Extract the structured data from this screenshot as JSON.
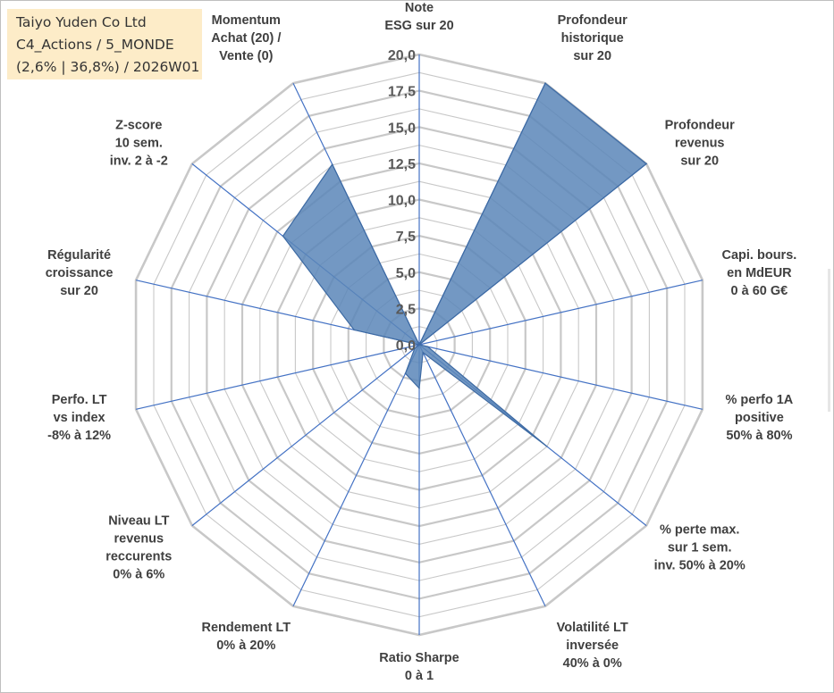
{
  "info": {
    "name": "Taiyo Yuden Co Ltd",
    "category": "C4_Actions / 5_MONDE",
    "stats": "(2,6% | 36,8%) / 2026W01"
  },
  "chart_data": {
    "type": "radar",
    "title": "",
    "rmax": 20,
    "ticks": [
      "0,0",
      "2,5",
      "5,0",
      "7,5",
      "10,0",
      "12,5",
      "15,0",
      "17,5",
      "20,0"
    ],
    "colors": {
      "fill": "#5b86b8",
      "stroke": "#3d6aa3",
      "axis": "#4472c4",
      "grid": "#c8c8c8"
    },
    "axes": [
      {
        "label": [
          "Note",
          "ESG sur 20"
        ],
        "value": 0
      },
      {
        "label": [
          "Profondeur",
          "historique",
          "sur 20"
        ],
        "value": 20
      },
      {
        "label": [
          "Profondeur",
          "revenus",
          "sur 20"
        ],
        "value": 20
      },
      {
        "label": [
          "Capi. bours.",
          "en MdEUR",
          "0 à 60 G€"
        ],
        "value": 0
      },
      {
        "label": [
          "% perfo 1A",
          "positive",
          "50% à 80%"
        ],
        "value": 0.6
      },
      {
        "label": [
          "% perte max.",
          "sur 1 sem.",
          "inv. 50% à 20%"
        ],
        "value": 11.2
      },
      {
        "label": [
          "Volatilité LT",
          "inversée",
          "40% à 0%"
        ],
        "value": 0.6
      },
      {
        "label": [
          "Ratio Sharpe",
          "0 à 1"
        ],
        "value": 3.0
      },
      {
        "label": [
          "Rendement LT",
          "0% à 20%"
        ],
        "value": 2.2
      },
      {
        "label": [
          "Niveau LT",
          "revenus",
          "reccurents",
          "0% à 6%"
        ],
        "value": 0.4
      },
      {
        "label": [
          "Perfo. LT",
          "vs index",
          "-8% à 12%"
        ],
        "value": 0
      },
      {
        "label": [
          "Régularité",
          "croissance",
          "sur 20"
        ],
        "value": 4.6
      },
      {
        "label": [
          "Z-score",
          "10 sem.",
          "inv. 2 à -2"
        ],
        "value": 12.0
      },
      {
        "label": [
          "Momentum",
          "Achat (20) /",
          "Vente (0)"
        ],
        "value": 13.8
      }
    ]
  }
}
